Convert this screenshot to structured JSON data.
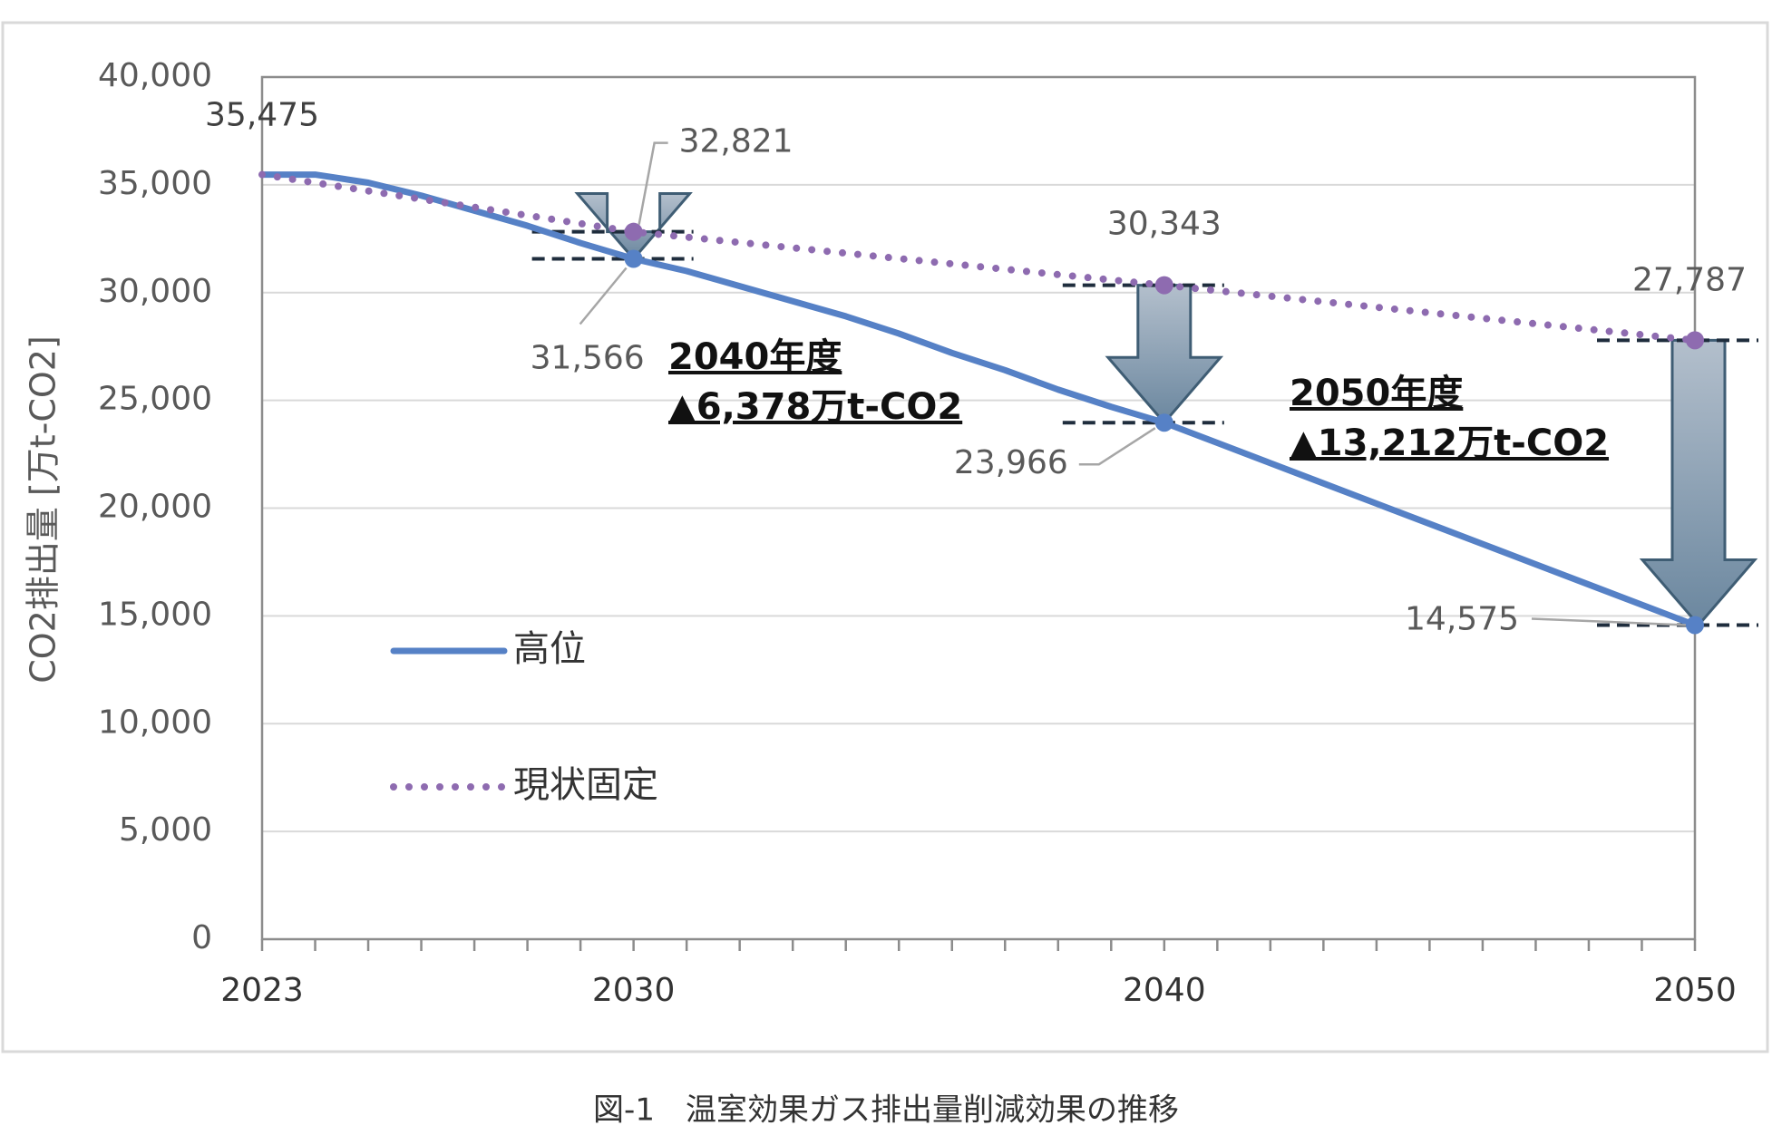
{
  "chart_data": {
    "type": "line",
    "ylabel": "CO2排出量 [万t-CO2]",
    "caption": "図-1　温室効果ガス排出量削減効果の推移",
    "x": [
      2023,
      2024,
      2025,
      2026,
      2027,
      2028,
      2029,
      2030,
      2031,
      2032,
      2033,
      2034,
      2035,
      2036,
      2037,
      2038,
      2039,
      2040,
      2041,
      2042,
      2043,
      2044,
      2045,
      2046,
      2047,
      2048,
      2049,
      2050
    ],
    "series": [
      {
        "name": "高位",
        "color": "#5681c6",
        "values": [
          35475,
          35475,
          35100,
          34500,
          33800,
          33100,
          32300,
          31566,
          31000,
          30300,
          29600,
          28900,
          28100,
          27200,
          26400,
          25500,
          24700,
          23966,
          23027,
          22088,
          21149,
          20210,
          19271,
          18332,
          17393,
          16454,
          15515,
          14575
        ],
        "value_labels": [
          "35,475",
          null,
          null,
          null,
          null,
          null,
          null,
          "31,566",
          null,
          null,
          null,
          null,
          null,
          null,
          null,
          null,
          null,
          "23,966",
          null,
          null,
          null,
          null,
          null,
          null,
          null,
          null,
          null,
          "14,575"
        ]
      },
      {
        "name": "現状固定",
        "color": "#8e6bb0",
        "values": [
          35475,
          35096,
          34717,
          34338,
          33959,
          33580,
          33200,
          32821,
          32573,
          32325,
          32077,
          31829,
          31580,
          31332,
          31084,
          30836,
          30588,
          30343,
          30087,
          29832,
          29576,
          29321,
          29065,
          28809,
          28554,
          28298,
          28043,
          27787
        ],
        "value_labels": [
          null,
          null,
          null,
          null,
          null,
          null,
          null,
          "32,821",
          null,
          null,
          null,
          null,
          null,
          null,
          null,
          null,
          null,
          "30,343",
          null,
          null,
          null,
          null,
          null,
          null,
          null,
          null,
          null,
          "27,787"
        ]
      }
    ],
    "annotations": [
      {
        "lines": [
          "2040年度",
          "▲6,378万t-CO2"
        ]
      },
      {
        "lines": [
          "2050年度",
          "▲13,212万t-CO2"
        ]
      }
    ],
    "xlim": [
      2023,
      2050
    ],
    "xticks": [
      2023,
      2030,
      2040,
      2050
    ],
    "ylim": [
      0,
      40000
    ],
    "yticks": [
      0,
      {
        "value": 5000,
        "label": "5,000"
      },
      {
        "value": 10000,
        "label": "10,000"
      },
      {
        "value": 15000,
        "label": "15,000"
      },
      {
        "value": 20000,
        "label": "20,000"
      },
      {
        "value": 25000,
        "label": "25,000"
      },
      {
        "value": 30000,
        "label": "30,000"
      },
      {
        "value": 35000,
        "label": "35,000"
      },
      {
        "value": 40000,
        "label": "40,000"
      }
    ],
    "grid": true,
    "legend": "left"
  }
}
